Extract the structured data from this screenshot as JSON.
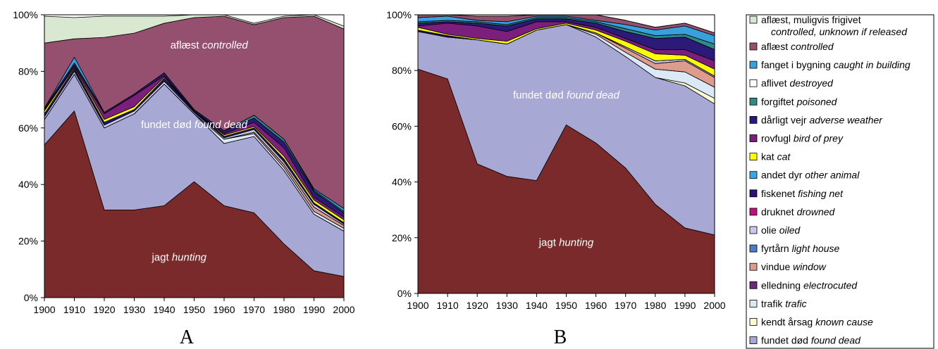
{
  "chart_data": [
    {
      "panel": "A",
      "type": "area",
      "x": [
        1900,
        1910,
        1920,
        1930,
        1940,
        1950,
        1960,
        1970,
        1980,
        1990,
        2000
      ],
      "ylim": [
        0,
        100
      ],
      "yticks": [
        "0%",
        "20%",
        "40%",
        "60%",
        "80%",
        "100%"
      ],
      "inside_labels": [
        {
          "text": "aflæst",
          "italic": "controlled",
          "ref_x": 1955,
          "ref_y": 88
        },
        {
          "text": "fundet død",
          "italic": "found dead",
          "ref_x": 1950,
          "ref_y": 60
        },
        {
          "text": "jagt",
          "italic": "hunting",
          "ref_x": 1945,
          "ref_y": 13
        }
      ],
      "series": [
        {
          "key": "hunting",
          "values": [
            54,
            66,
            31,
            31,
            32.5,
            41,
            32.5,
            30,
            19,
            9.5,
            7.5
          ]
        },
        {
          "key": "found_dead",
          "values": [
            9,
            13,
            29,
            34,
            43,
            24,
            22,
            27,
            26,
            20,
            16
          ]
        },
        {
          "key": "known_cause",
          "values": [
            0,
            0,
            0,
            0,
            0,
            0,
            0,
            0,
            0,
            0,
            0
          ]
        },
        {
          "key": "trafic",
          "values": [
            0,
            0,
            0,
            0,
            0,
            0,
            1.5,
            1,
            1,
            1,
            1
          ]
        },
        {
          "key": "electrocuted",
          "values": [
            0,
            0,
            0,
            0,
            0,
            0,
            0,
            0,
            0,
            0,
            0
          ]
        },
        {
          "key": "window",
          "values": [
            0,
            0,
            0,
            0,
            0,
            0,
            0,
            0.5,
            1,
            1.5,
            1
          ]
        },
        {
          "key": "light_house",
          "values": [
            0,
            0,
            0,
            0,
            0,
            0,
            0,
            0,
            0,
            0,
            0
          ]
        },
        {
          "key": "oiled",
          "values": [
            1,
            1,
            1,
            1,
            1,
            0.5,
            0.5,
            1,
            1,
            1,
            0.5
          ]
        },
        {
          "key": "drowned",
          "values": [
            0,
            0,
            0,
            0,
            0,
            0,
            0,
            0,
            0,
            0,
            0
          ]
        },
        {
          "key": "fishing_net",
          "values": [
            1,
            1,
            1,
            0.5,
            1,
            0.5,
            0.5,
            0.5,
            1,
            0.5,
            0.5
          ]
        },
        {
          "key": "other_animal",
          "values": [
            0,
            0,
            0,
            0,
            0,
            0,
            0,
            0,
            0,
            0,
            0
          ]
        },
        {
          "key": "cat",
          "values": [
            1,
            0.5,
            1,
            1,
            0.5,
            0,
            0.5,
            0.5,
            1,
            1,
            1
          ]
        },
        {
          "key": "bird_of_prey",
          "values": [
            0.5,
            0.5,
            2,
            4,
            0.5,
            0,
            0.5,
            1.5,
            3,
            1,
            1
          ]
        },
        {
          "key": "adverse_weather",
          "values": [
            0.5,
            1,
            0.5,
            0.5,
            1,
            0.5,
            1,
            1.5,
            2,
            2,
            1.5
          ]
        },
        {
          "key": "poisoned",
          "values": [
            0,
            0,
            0,
            0,
            0,
            0,
            0,
            1,
            1,
            0.5,
            0.5
          ]
        },
        {
          "key": "destroyed",
          "values": [
            0,
            0,
            0,
            0,
            0,
            0,
            0,
            0,
            0,
            0,
            0
          ]
        },
        {
          "key": "caught_in_building",
          "values": [
            0,
            2,
            0,
            0,
            0,
            0,
            0,
            0,
            0,
            0.5,
            1
          ]
        },
        {
          "key": "controlled",
          "values": [
            23,
            6.5,
            26.5,
            21.5,
            17.5,
            32.5,
            40.5,
            32,
            43,
            61,
            63.5
          ]
        },
        {
          "key": "released_unknown",
          "values": [
            9.5,
            7.5,
            7.5,
            6,
            2.5,
            1,
            0.5,
            0.5,
            0.5,
            0.5,
            1
          ]
        }
      ]
    },
    {
      "panel": "B",
      "type": "area",
      "x": [
        1900,
        1910,
        1920,
        1930,
        1940,
        1950,
        1960,
        1970,
        1980,
        1990,
        2000
      ],
      "ylim": [
        0,
        100
      ],
      "yticks": [
        "0%",
        "20%",
        "40%",
        "60%",
        "80%",
        "100%"
      ],
      "inside_labels": [
        {
          "text": "fundet død",
          "italic": "found dead",
          "ref_x": 1950,
          "ref_y": 70
        },
        {
          "text": "jagt",
          "italic": "hunting",
          "ref_x": 1950,
          "ref_y": 17
        }
      ],
      "series": [
        {
          "key": "hunting",
          "values": [
            80.5,
            77,
            46.5,
            42,
            40.5,
            60.5,
            54,
            45,
            32,
            23.5,
            21
          ]
        },
        {
          "key": "found_dead",
          "values": [
            13.5,
            15,
            44.5,
            47.5,
            54,
            36,
            38,
            40,
            45.5,
            51,
            47
          ]
        },
        {
          "key": "known_cause",
          "values": [
            0,
            0,
            0,
            0,
            0,
            0,
            0,
            0,
            0,
            1,
            2
          ]
        },
        {
          "key": "trafic",
          "values": [
            0,
            0,
            0,
            0,
            0,
            0,
            1,
            1.5,
            3,
            4,
            4
          ]
        },
        {
          "key": "electrocuted",
          "values": [
            0,
            0,
            0,
            0,
            0,
            0,
            0,
            0,
            0,
            0,
            0
          ]
        },
        {
          "key": "window",
          "values": [
            0,
            0,
            0,
            0,
            0,
            0,
            0.5,
            1.5,
            2,
            4,
            3.5
          ]
        },
        {
          "key": "light_house",
          "values": [
            0,
            0,
            0,
            0,
            0,
            0,
            0,
            0,
            0,
            0,
            0
          ]
        },
        {
          "key": "oiled",
          "values": [
            0,
            0,
            0,
            0,
            0,
            0,
            0,
            0.5,
            1,
            0.5,
            0.5
          ]
        },
        {
          "key": "drowned",
          "values": [
            0,
            0,
            0,
            0,
            0,
            0,
            0,
            0,
            0,
            0,
            0
          ]
        },
        {
          "key": "fishing_net",
          "values": [
            0.5,
            0.5,
            0,
            0,
            0,
            0,
            0,
            0,
            0,
            0,
            0
          ]
        },
        {
          "key": "other_animal",
          "values": [
            0,
            0,
            0,
            0,
            0,
            0,
            0,
            0,
            0,
            0,
            0
          ]
        },
        {
          "key": "cat",
          "values": [
            1,
            0.5,
            0.5,
            1,
            0.5,
            0.5,
            1,
            2,
            2.5,
            1.5,
            2.5
          ]
        },
        {
          "key": "bird_of_prey",
          "values": [
            0.5,
            4,
            4.5,
            3.5,
            2.5,
            0.5,
            1,
            1,
            1.5,
            2,
            3
          ]
        },
        {
          "key": "adverse_weather",
          "values": [
            1,
            0.5,
            1,
            2,
            1,
            1,
            1.5,
            2.5,
            4,
            4.5,
            4
          ]
        },
        {
          "key": "poisoned",
          "values": [
            0.5,
            0.5,
            0.5,
            0.5,
            0.5,
            0.5,
            0.5,
            1,
            1,
            1,
            2
          ]
        },
        {
          "key": "destroyed",
          "values": [
            0,
            0,
            0,
            0,
            0,
            0,
            0,
            0,
            0,
            0,
            0
          ]
        },
        {
          "key": "caught_in_building",
          "values": [
            1.5,
            1.5,
            0.5,
            1,
            0.5,
            0.5,
            0.5,
            1.5,
            2,
            3,
            3
          ]
        },
        {
          "key": "controlled",
          "values": [
            1,
            0.5,
            1.5,
            2,
            0.5,
            0.5,
            2,
            1.5,
            1,
            1,
            1
          ]
        },
        {
          "key": "released_unknown",
          "values": [
            0,
            0,
            0.5,
            0.5,
            0,
            0,
            0,
            0,
            0,
            0,
            0
          ]
        }
      ]
    }
  ],
  "legend": [
    {
      "key": "released_unknown",
      "text": "aflæst, muligvis frigivet",
      "italic": "controlled, unknown if released",
      "color": "#d9e9d1",
      "two_line": true
    },
    {
      "key": "controlled",
      "text": "aflæst",
      "italic": "controlled",
      "color": "#94506e"
    },
    {
      "key": "caught_in_building",
      "text": "fanget i bygning",
      "italic": "caught in building",
      "color": "#3aa0dc"
    },
    {
      "key": "destroyed",
      "text": "aflivet",
      "italic": "destroyed",
      "color": "#ffffff"
    },
    {
      "key": "poisoned",
      "text": "forgiftet",
      "italic": "poisoned",
      "color": "#2e8b87"
    },
    {
      "key": "adverse_weather",
      "text": "dårligt vejr",
      "italic": "adverse weather",
      "color": "#2c1a78"
    },
    {
      "key": "bird_of_prey",
      "text": "rovfugl",
      "italic": "bird of prey",
      "color": "#7c1f7c"
    },
    {
      "key": "cat",
      "text": "kat",
      "italic": "cat",
      "color": "#ffff00"
    },
    {
      "key": "other_animal",
      "text": "andet dyr",
      "italic": "other animal",
      "color": "#3ba6e0"
    },
    {
      "key": "fishing_net",
      "text": "fiskenet",
      "italic": "fishing net",
      "color": "#2a1470"
    },
    {
      "key": "drowned",
      "text": "druknet",
      "italic": "drowned",
      "color": "#c0107a"
    },
    {
      "key": "oiled",
      "text": "olie",
      "italic": "oiled",
      "color": "#c8c8ec"
    },
    {
      "key": "light_house",
      "text": "fyrtårn",
      "italic": "light house",
      "color": "#4a7cc8"
    },
    {
      "key": "window",
      "text": "vindue",
      "italic": "window",
      "color": "#de9c8e"
    },
    {
      "key": "electrocuted",
      "text": "elledning",
      "italic": "electrocuted",
      "color": "#6a2a78"
    },
    {
      "key": "trafic",
      "text": "trafik",
      "italic": "trafic",
      "color": "#dbe9f7"
    },
    {
      "key": "known_cause",
      "text": "kendt årsag",
      "italic": "known cause",
      "color": "#fdfbd6"
    },
    {
      "key": "found_dead",
      "text": "fundet død",
      "italic": "found dead",
      "color": "#a8a8d4"
    },
    {
      "key": "hunting",
      "text": "jagt",
      "italic": "hunting",
      "color": "#7a2a2a"
    }
  ],
  "panel_letters": [
    "A",
    "B"
  ]
}
